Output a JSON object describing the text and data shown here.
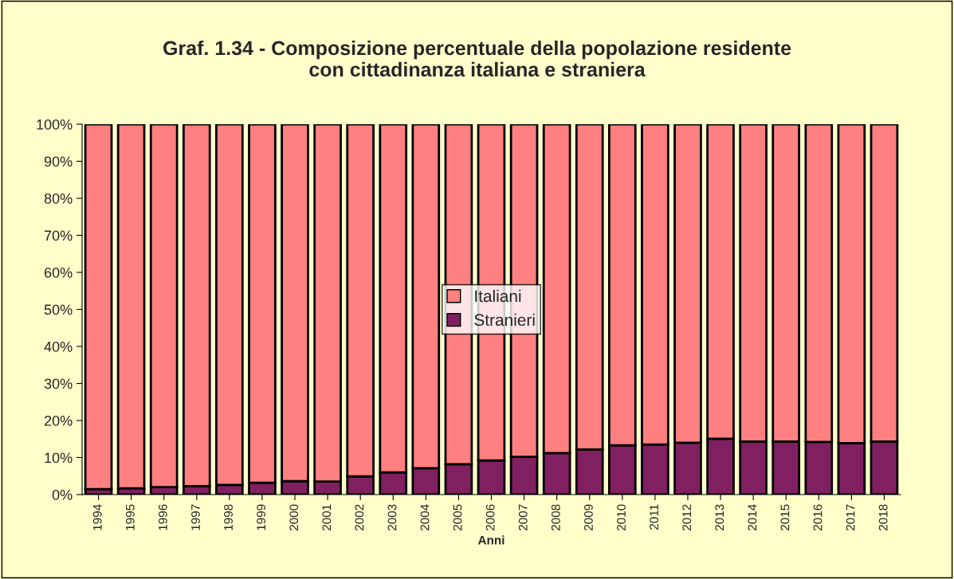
{
  "chart_data": {
    "type": "bar",
    "title": "Graf. 1.34 - Composizione percentuale della popolazione residente\ncon cittadinanza italiana e straniera",
    "xlabel": "Anni",
    "categories": [
      "1994",
      "1995",
      "1996",
      "1997",
      "1998",
      "1999",
      "2000",
      "2001",
      "2002",
      "2003",
      "2004",
      "2005",
      "2006",
      "2007",
      "2008",
      "2009",
      "2010",
      "2011",
      "2012",
      "2013",
      "2014",
      "2015",
      "2016",
      "2017",
      "2018"
    ],
    "stacked": true,
    "series": [
      {
        "name": "Stranieri",
        "color": "#802060",
        "values": [
          1.5,
          1.7,
          2.0,
          2.3,
          2.6,
          3.2,
          3.6,
          3.5,
          4.9,
          6.0,
          7.1,
          8.2,
          9.2,
          10.2,
          11.2,
          12.2,
          13.3,
          13.5,
          14.0,
          15.1,
          14.3,
          14.3,
          14.2,
          13.9,
          14.3
        ]
      },
      {
        "name": "Italiani",
        "color": "#ff8080",
        "values": [
          98.5,
          98.3,
          98.0,
          97.7,
          97.4,
          96.8,
          96.4,
          96.5,
          95.1,
          94.0,
          92.9,
          91.8,
          90.8,
          89.8,
          88.8,
          87.8,
          86.7,
          86.5,
          86.0,
          84.9,
          85.7,
          85.7,
          85.8,
          86.1,
          85.7
        ]
      }
    ],
    "ylim": [
      0,
      100
    ],
    "yticks": [
      {
        "value": 0,
        "label": "0%"
      },
      {
        "value": 10,
        "label": "10%"
      },
      {
        "value": 20,
        "label": "20%"
      },
      {
        "value": 30,
        "label": "30%"
      },
      {
        "value": 40,
        "label": "40%"
      },
      {
        "value": 50,
        "label": "50%"
      },
      {
        "value": 60,
        "label": "60%"
      },
      {
        "value": 70,
        "label": "70%"
      },
      {
        "value": 80,
        "label": "80%"
      },
      {
        "value": 90,
        "label": "90%"
      },
      {
        "value": 100,
        "label": "100%"
      }
    ],
    "legend": "center",
    "grid": false
  }
}
